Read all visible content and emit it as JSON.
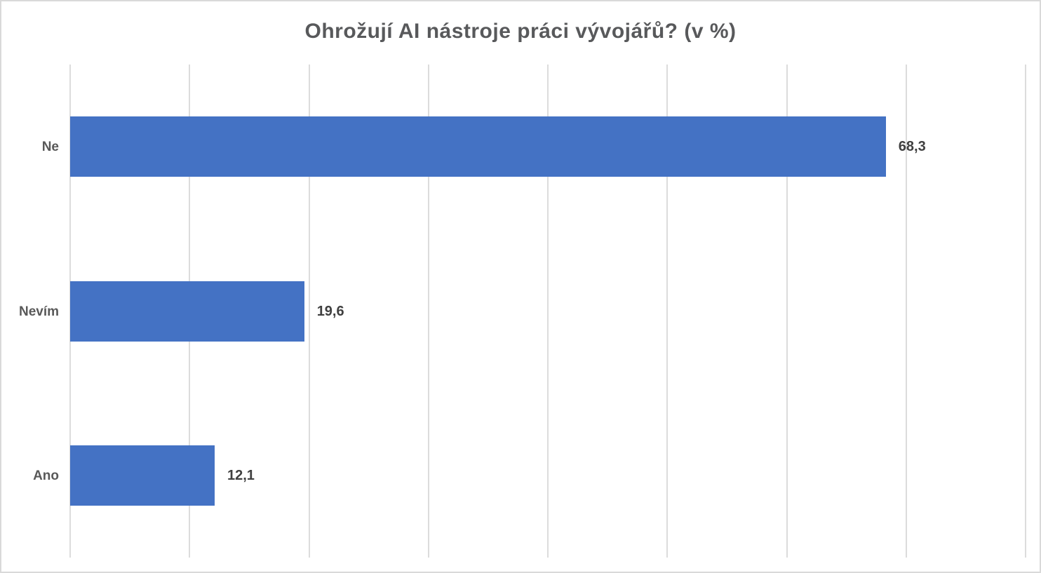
{
  "chart_data": {
    "type": "bar",
    "orientation": "horizontal",
    "title": "Ohrožují AI nástroje práci vývojářů? (v %)",
    "categories": [
      "Ne",
      "Nevím",
      "Ano"
    ],
    "values": [
      68.3,
      19.6,
      12.1
    ],
    "value_labels": [
      "68,3",
      "19,6",
      "12,1"
    ],
    "xlabel": "",
    "ylabel": "",
    "xlim": [
      0,
      80
    ],
    "grid_step": 10,
    "grid": true,
    "axis_tick_labels_visible": false,
    "legend": "none",
    "colors": {
      "bar": "#4472c4",
      "title_text": "#58595b",
      "category_text": "#595959",
      "value_text": "#3f3f3f",
      "gridline": "#dcdcdc",
      "frame_border": "#d9d9d9",
      "background": "#ffffff"
    }
  }
}
